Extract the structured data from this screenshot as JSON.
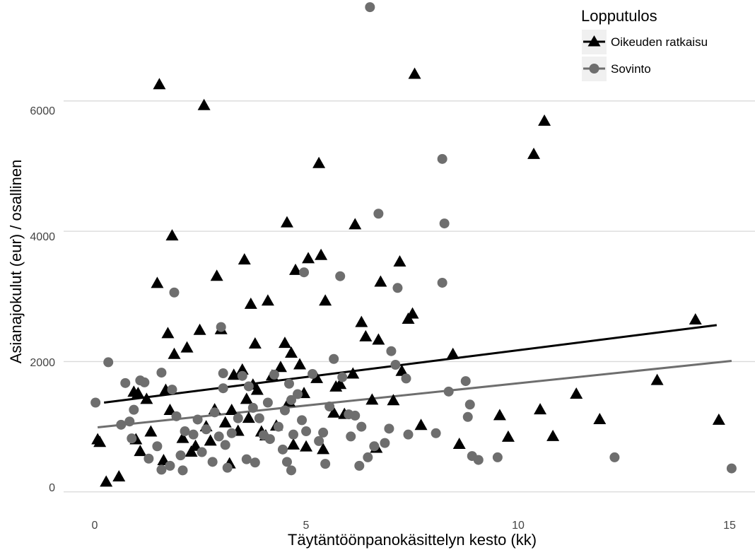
{
  "chart_data": {
    "type": "scatter",
    "title": "",
    "xlabel": "Täytäntöönpanokäsittelyn kesto (kk)",
    "ylabel": "Asianajokulut (eur) / osallinen",
    "xlim": [
      -0.75,
      15.5
    ],
    "ylim": [
      -350,
      7550
    ],
    "x_ticks": [
      0,
      5,
      10,
      15
    ],
    "y_ticks": [
      0,
      2000,
      4000,
      6000
    ],
    "x_tick_labels": [
      "0",
      "5",
      "10",
      "15"
    ],
    "y_tick_labels": [
      "0",
      "2000",
      "4000",
      "6000"
    ],
    "grid": "horizontal major lines",
    "legend": {
      "title": "Lopputulos",
      "position": "top-right",
      "entries": [
        "Oikeuden ratkaisu",
        "Sovinto"
      ]
    },
    "series": [
      {
        "name": "Oikeuden ratkaisu",
        "marker": "triangle",
        "color": "#000000",
        "trend_line": {
          "x": [
            0.2,
            14.6
          ],
          "y": [
            1370,
            2560
          ]
        },
        "points": [
          {
            "x": 0.05,
            "y": 800
          },
          {
            "x": 0.1,
            "y": 760
          },
          {
            "x": 0.25,
            "y": 150
          },
          {
            "x": 0.55,
            "y": 230
          },
          {
            "x": 0.9,
            "y": 1530
          },
          {
            "x": 1.0,
            "y": 1510
          },
          {
            "x": 1.2,
            "y": 1420
          },
          {
            "x": 0.95,
            "y": 800
          },
          {
            "x": 1.05,
            "y": 620
          },
          {
            "x": 1.3,
            "y": 920
          },
          {
            "x": 1.45,
            "y": 3200
          },
          {
            "x": 1.5,
            "y": 6250
          },
          {
            "x": 1.6,
            "y": 480
          },
          {
            "x": 1.65,
            "y": 1560
          },
          {
            "x": 1.7,
            "y": 2430
          },
          {
            "x": 1.75,
            "y": 1250
          },
          {
            "x": 1.8,
            "y": 3930
          },
          {
            "x": 1.85,
            "y": 2110
          },
          {
            "x": 2.05,
            "y": 820
          },
          {
            "x": 2.15,
            "y": 2210
          },
          {
            "x": 2.25,
            "y": 610
          },
          {
            "x": 2.35,
            "y": 700
          },
          {
            "x": 2.45,
            "y": 2480
          },
          {
            "x": 2.55,
            "y": 5930
          },
          {
            "x": 2.6,
            "y": 1000
          },
          {
            "x": 2.7,
            "y": 780
          },
          {
            "x": 2.8,
            "y": 1260
          },
          {
            "x": 2.85,
            "y": 3310
          },
          {
            "x": 2.95,
            "y": 2490
          },
          {
            "x": 3.05,
            "y": 1060
          },
          {
            "x": 3.15,
            "y": 430
          },
          {
            "x": 3.2,
            "y": 1250
          },
          {
            "x": 3.25,
            "y": 1790
          },
          {
            "x": 3.35,
            "y": 930
          },
          {
            "x": 3.45,
            "y": 1870
          },
          {
            "x": 3.5,
            "y": 3560
          },
          {
            "x": 3.55,
            "y": 1420
          },
          {
            "x": 3.6,
            "y": 1130
          },
          {
            "x": 3.65,
            "y": 2880
          },
          {
            "x": 3.7,
            "y": 1640
          },
          {
            "x": 3.75,
            "y": 2270
          },
          {
            "x": 3.8,
            "y": 1560
          },
          {
            "x": 3.9,
            "y": 920
          },
          {
            "x": 4.0,
            "y": 860
          },
          {
            "x": 4.05,
            "y": 2930
          },
          {
            "x": 4.15,
            "y": 1780
          },
          {
            "x": 4.25,
            "y": 1010
          },
          {
            "x": 4.35,
            "y": 1910
          },
          {
            "x": 4.45,
            "y": 2280
          },
          {
            "x": 4.5,
            "y": 4130
          },
          {
            "x": 4.55,
            "y": 1380
          },
          {
            "x": 4.6,
            "y": 2130
          },
          {
            "x": 4.65,
            "y": 720
          },
          {
            "x": 4.7,
            "y": 3400
          },
          {
            "x": 4.8,
            "y": 1950
          },
          {
            "x": 4.9,
            "y": 1510
          },
          {
            "x": 4.95,
            "y": 690
          },
          {
            "x": 5.0,
            "y": 3580
          },
          {
            "x": 5.2,
            "y": 1740
          },
          {
            "x": 5.25,
            "y": 5040
          },
          {
            "x": 5.3,
            "y": 3630
          },
          {
            "x": 5.35,
            "y": 650
          },
          {
            "x": 5.4,
            "y": 2930
          },
          {
            "x": 5.6,
            "y": 1210
          },
          {
            "x": 5.65,
            "y": 1610
          },
          {
            "x": 5.75,
            "y": 1650
          },
          {
            "x": 5.85,
            "y": 1190
          },
          {
            "x": 6.05,
            "y": 1810
          },
          {
            "x": 6.1,
            "y": 4100
          },
          {
            "x": 6.25,
            "y": 2600
          },
          {
            "x": 6.35,
            "y": 2380
          },
          {
            "x": 6.5,
            "y": 1410
          },
          {
            "x": 6.6,
            "y": 670
          },
          {
            "x": 6.65,
            "y": 2330
          },
          {
            "x": 6.7,
            "y": 3220
          },
          {
            "x": 7.0,
            "y": 1400
          },
          {
            "x": 7.15,
            "y": 3530
          },
          {
            "x": 7.2,
            "y": 1850
          },
          {
            "x": 7.35,
            "y": 2650
          },
          {
            "x": 7.45,
            "y": 2730
          },
          {
            "x": 7.5,
            "y": 6410
          },
          {
            "x": 7.65,
            "y": 1020
          },
          {
            "x": 8.4,
            "y": 2110
          },
          {
            "x": 8.55,
            "y": 730
          },
          {
            "x": 9.5,
            "y": 1170
          },
          {
            "x": 9.7,
            "y": 840
          },
          {
            "x": 10.3,
            "y": 5180
          },
          {
            "x": 10.45,
            "y": 1260
          },
          {
            "x": 10.55,
            "y": 5690
          },
          {
            "x": 10.75,
            "y": 850
          },
          {
            "x": 11.3,
            "y": 1500
          },
          {
            "x": 11.85,
            "y": 1110
          },
          {
            "x": 13.2,
            "y": 1710
          },
          {
            "x": 14.1,
            "y": 2640
          },
          {
            "x": 14.65,
            "y": 1100
          }
        ]
      },
      {
        "name": "Sovinto",
        "marker": "circle",
        "color": "#6e6e6e",
        "trend_line": {
          "x": [
            0.05,
            14.95
          ],
          "y": [
            990,
            2010
          ]
        },
        "points": [
          {
            "x": 0.0,
            "y": 1370
          },
          {
            "x": 0.3,
            "y": 1990
          },
          {
            "x": 0.6,
            "y": 1030
          },
          {
            "x": 0.7,
            "y": 1670
          },
          {
            "x": 0.8,
            "y": 1080
          },
          {
            "x": 0.85,
            "y": 820
          },
          {
            "x": 0.9,
            "y": 1260
          },
          {
            "x": 1.05,
            "y": 1710
          },
          {
            "x": 1.15,
            "y": 1680
          },
          {
            "x": 1.25,
            "y": 510
          },
          {
            "x": 1.45,
            "y": 700
          },
          {
            "x": 1.55,
            "y": 1830
          },
          {
            "x": 1.55,
            "y": 340
          },
          {
            "x": 1.75,
            "y": 400
          },
          {
            "x": 1.8,
            "y": 1570
          },
          {
            "x": 1.85,
            "y": 3060
          },
          {
            "x": 1.9,
            "y": 1160
          },
          {
            "x": 2.0,
            "y": 560
          },
          {
            "x": 2.05,
            "y": 330
          },
          {
            "x": 2.1,
            "y": 930
          },
          {
            "x": 2.3,
            "y": 880
          },
          {
            "x": 2.4,
            "y": 1110
          },
          {
            "x": 2.5,
            "y": 610
          },
          {
            "x": 2.6,
            "y": 960
          },
          {
            "x": 2.75,
            "y": 460
          },
          {
            "x": 2.8,
            "y": 1220
          },
          {
            "x": 2.9,
            "y": 850
          },
          {
            "x": 2.95,
            "y": 2530
          },
          {
            "x": 3.0,
            "y": 1820
          },
          {
            "x": 3.0,
            "y": 1590
          },
          {
            "x": 3.05,
            "y": 720
          },
          {
            "x": 3.1,
            "y": 370
          },
          {
            "x": 3.2,
            "y": 900
          },
          {
            "x": 3.35,
            "y": 1130
          },
          {
            "x": 3.45,
            "y": 1780
          },
          {
            "x": 3.55,
            "y": 500
          },
          {
            "x": 3.6,
            "y": 1620
          },
          {
            "x": 3.7,
            "y": 1290
          },
          {
            "x": 3.75,
            "y": 450
          },
          {
            "x": 3.85,
            "y": 1130
          },
          {
            "x": 3.95,
            "y": 870
          },
          {
            "x": 4.05,
            "y": 1370
          },
          {
            "x": 4.1,
            "y": 810
          },
          {
            "x": 4.2,
            "y": 1800
          },
          {
            "x": 4.3,
            "y": 1000
          },
          {
            "x": 4.4,
            "y": 650
          },
          {
            "x": 4.45,
            "y": 1250
          },
          {
            "x": 4.5,
            "y": 460
          },
          {
            "x": 4.55,
            "y": 1660
          },
          {
            "x": 4.6,
            "y": 1410
          },
          {
            "x": 4.6,
            "y": 330
          },
          {
            "x": 4.65,
            "y": 880
          },
          {
            "x": 4.75,
            "y": 1500
          },
          {
            "x": 4.85,
            "y": 1100
          },
          {
            "x": 4.9,
            "y": 3370
          },
          {
            "x": 4.95,
            "y": 930
          },
          {
            "x": 5.1,
            "y": 1810
          },
          {
            "x": 5.25,
            "y": 780
          },
          {
            "x": 5.35,
            "y": 910
          },
          {
            "x": 5.4,
            "y": 430
          },
          {
            "x": 5.5,
            "y": 1310
          },
          {
            "x": 5.6,
            "y": 2040
          },
          {
            "x": 5.75,
            "y": 3310
          },
          {
            "x": 5.8,
            "y": 1760
          },
          {
            "x": 5.95,
            "y": 1190
          },
          {
            "x": 6.0,
            "y": 850
          },
          {
            "x": 6.1,
            "y": 1170
          },
          {
            "x": 6.2,
            "y": 400
          },
          {
            "x": 6.25,
            "y": 1000
          },
          {
            "x": 6.4,
            "y": 530
          },
          {
            "x": 6.45,
            "y": 7440
          },
          {
            "x": 6.55,
            "y": 700
          },
          {
            "x": 6.65,
            "y": 4270
          },
          {
            "x": 6.8,
            "y": 750
          },
          {
            "x": 6.9,
            "y": 970
          },
          {
            "x": 6.95,
            "y": 2160
          },
          {
            "x": 7.05,
            "y": 1950
          },
          {
            "x": 7.1,
            "y": 3130
          },
          {
            "x": 7.3,
            "y": 1740
          },
          {
            "x": 7.35,
            "y": 880
          },
          {
            "x": 8.0,
            "y": 900
          },
          {
            "x": 8.15,
            "y": 5110
          },
          {
            "x": 8.15,
            "y": 3210
          },
          {
            "x": 8.2,
            "y": 4120
          },
          {
            "x": 8.3,
            "y": 1540
          },
          {
            "x": 8.7,
            "y": 1700
          },
          {
            "x": 8.75,
            "y": 1150
          },
          {
            "x": 8.8,
            "y": 1340
          },
          {
            "x": 8.85,
            "y": 550
          },
          {
            "x": 9.0,
            "y": 490
          },
          {
            "x": 9.45,
            "y": 530
          },
          {
            "x": 12.2,
            "y": 530
          },
          {
            "x": 14.95,
            "y": 360
          }
        ]
      }
    ]
  }
}
